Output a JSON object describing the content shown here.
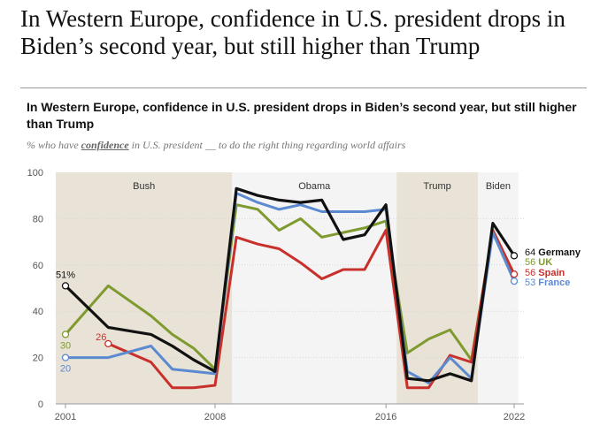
{
  "page": {
    "headline": "In Western Europe, confidence in U.S. president drops in Biden’s second year, but still higher than Trump"
  },
  "colors": {
    "Germany": "#111111",
    "UK": "#7f9a2e",
    "Spain": "#c8302c",
    "France": "#5b8ad0",
    "band_dark": "#e8e3d6",
    "band_light": "#f4f4f4"
  },
  "chart_data": {
    "type": "line",
    "title": "In Western Europe, confidence in U.S. president drops in Biden’s second year, but still higher than Trump",
    "subtitle_prefix": "% who have",
    "subtitle_emphasis": "confidence",
    "subtitle_suffix": "in U.S. president __ to do the right thing regarding world affairs",
    "xlabel": "",
    "ylabel": "",
    "xlim": [
      2001,
      2022
    ],
    "ylim": [
      0,
      100
    ],
    "yticks": [
      0,
      20,
      40,
      60,
      80,
      100
    ],
    "xticks": [
      2001,
      2008,
      2016,
      2022
    ],
    "eras": [
      {
        "name": "Bush",
        "start": 2000.4,
        "end": 2008.8,
        "shade": "dark"
      },
      {
        "name": "Obama",
        "start": 2008.8,
        "end": 2016.5,
        "shade": "light"
      },
      {
        "name": "Trump",
        "start": 2016.5,
        "end": 2020.3,
        "shade": "dark"
      },
      {
        "name": "Biden",
        "start": 2020.3,
        "end": 2022.2,
        "shade": "light"
      }
    ],
    "series": [
      {
        "name": "UK",
        "x": [
          2001,
          2003,
          2005,
          2006,
          2007,
          2008,
          2009,
          2010,
          2011,
          2012,
          2013,
          2014,
          2015,
          2016,
          2017,
          2018,
          2019,
          2020,
          2021,
          2022
        ],
        "values": [
          30,
          51,
          38,
          30,
          24,
          15,
          86,
          84,
          75,
          80,
          72,
          74,
          76,
          79,
          22,
          28,
          32,
          19,
          75,
          56
        ]
      },
      {
        "name": "Spain",
        "x": [
          2003,
          2005,
          2006,
          2007,
          2008,
          2009,
          2010,
          2011,
          2012,
          2013,
          2014,
          2015,
          2016,
          2017,
          2018,
          2019,
          2020,
          2021,
          2022
        ],
        "values": [
          26,
          18,
          7,
          7,
          8,
          72,
          69,
          67,
          61,
          54,
          58,
          58,
          75,
          7,
          7,
          21,
          18,
          75,
          56
        ]
      },
      {
        "name": "France",
        "x": [
          2001,
          2003,
          2005,
          2006,
          2007,
          2008,
          2009,
          2010,
          2011,
          2012,
          2013,
          2014,
          2015,
          2016,
          2017,
          2018,
          2019,
          2020,
          2021,
          2022
        ],
        "values": [
          20,
          20,
          25,
          15,
          14,
          13,
          91,
          87,
          84,
          86,
          83,
          83,
          83,
          84,
          14,
          9,
          20,
          11,
          74,
          53
        ]
      },
      {
        "name": "Germany",
        "x": [
          2001,
          2003,
          2005,
          2006,
          2007,
          2008,
          2009,
          2010,
          2011,
          2012,
          2013,
          2014,
          2015,
          2016,
          2017,
          2018,
          2019,
          2020,
          2021,
          2022
        ],
        "values": [
          51,
          33,
          30,
          25,
          19,
          14,
          93,
          90,
          88,
          87,
          88,
          71,
          73,
          86,
          11,
          10,
          13,
          10,
          78,
          64
        ]
      }
    ],
    "start_labels": [
      {
        "series": "Germany",
        "text": "51%",
        "x": 2001,
        "value": 51,
        "placement": "above"
      },
      {
        "series": "UK",
        "text": "30",
        "x": 2001,
        "value": 30,
        "placement": "below"
      },
      {
        "series": "Spain",
        "text": "26",
        "x": 2003,
        "value": 26,
        "placement": "left"
      },
      {
        "series": "France",
        "text": "20",
        "x": 2001,
        "value": 20,
        "placement": "below"
      }
    ],
    "end_labels": [
      {
        "series": "Germany",
        "value": 64,
        "text": "64",
        "country": "Germany"
      },
      {
        "series": "UK",
        "value": 56,
        "text": "56",
        "country": "UK"
      },
      {
        "series": "Spain",
        "value": 56,
        "text": "56",
        "country": "Spain"
      },
      {
        "series": "France",
        "value": 53,
        "text": "53",
        "country": "France"
      }
    ]
  }
}
